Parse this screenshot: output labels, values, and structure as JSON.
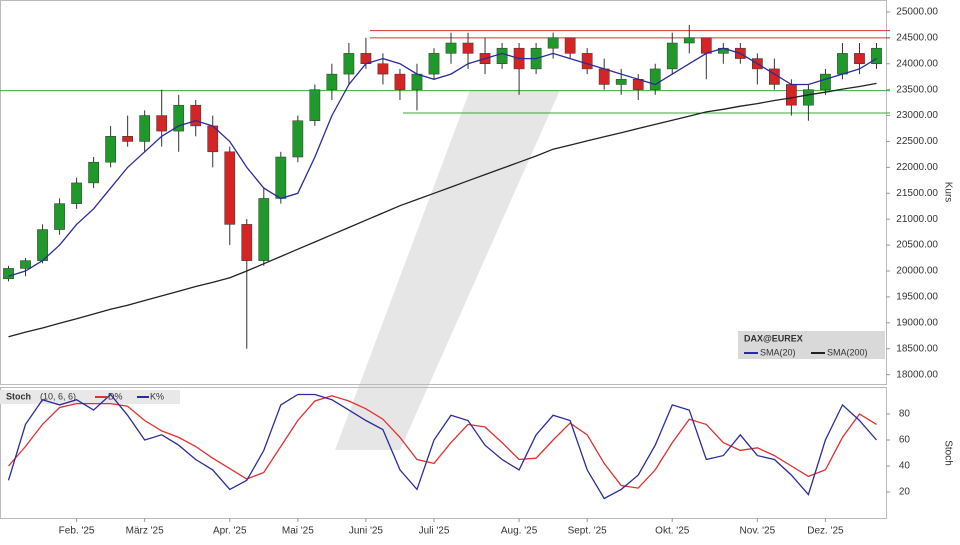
{
  "chart_data": [
    {
      "type": "candlestick",
      "legend_title": "DAX@EUREX",
      "ylabel": "Kurs",
      "categories": [
        null,
        null,
        null,
        null,
        "Feb. '25",
        null,
        null,
        null,
        "März '25",
        null,
        null,
        null,
        null,
        "Apr. '25",
        null,
        null,
        null,
        "Mai '25",
        null,
        null,
        null,
        "Juni '25",
        null,
        null,
        null,
        "Juli '25",
        null,
        null,
        null,
        null,
        "Aug. '25",
        null,
        null,
        null,
        "Sept. '25",
        null,
        null,
        null,
        null,
        "Okt. '25",
        null,
        null,
        null,
        null,
        "Nov. '25",
        null,
        null,
        null,
        "Dez. '25",
        null,
        null,
        null
      ],
      "open": [
        19850,
        20050,
        20200,
        20800,
        21300,
        21700,
        22100,
        22600,
        22500,
        23000,
        22700,
        23200,
        22800,
        22300,
        20900,
        20200,
        21400,
        22200,
        22900,
        23500,
        23800,
        24200,
        24000,
        23800,
        23500,
        23800,
        24200,
        24400,
        24200,
        24000,
        24300,
        23900,
        24300,
        24500,
        24200,
        23900,
        23600,
        23700,
        23500,
        23900,
        24400,
        24500,
        24200,
        24300,
        24100,
        23900,
        23600,
        23200,
        23500,
        23800,
        24200,
        24000
      ],
      "high": [
        20100,
        20250,
        20900,
        21400,
        21800,
        22200,
        22800,
        23000,
        23100,
        23500,
        23400,
        23300,
        23000,
        22400,
        21000,
        21600,
        22300,
        23000,
        23600,
        24000,
        24400,
        24500,
        24200,
        23900,
        24000,
        24300,
        24600,
        24600,
        24500,
        24400,
        24400,
        24400,
        24600,
        24500,
        24300,
        24100,
        23900,
        23800,
        24000,
        24600,
        24750,
        24500,
        24400,
        24400,
        24200,
        24100,
        23700,
        23600,
        23900,
        24400,
        24400,
        24400
      ],
      "low": [
        19800,
        19900,
        20150,
        20700,
        21200,
        21600,
        22000,
        22400,
        22300,
        22400,
        22300,
        22600,
        22000,
        20500,
        18500,
        20100,
        21300,
        22100,
        22800,
        23300,
        23600,
        23900,
        23600,
        23300,
        23100,
        23700,
        24000,
        23900,
        23800,
        23900,
        23400,
        23800,
        24100,
        24100,
        23800,
        23500,
        23400,
        23300,
        23400,
        23800,
        24200,
        23700,
        24000,
        24000,
        23600,
        23500,
        23000,
        22900,
        23400,
        23700,
        23800,
        23900
      ],
      "close": [
        20050,
        20200,
        20800,
        21300,
        21700,
        22100,
        22600,
        22500,
        23000,
        22700,
        23200,
        22800,
        22300,
        20900,
        20200,
        21400,
        22200,
        22900,
        23500,
        23800,
        24200,
        24000,
        23800,
        23500,
        23800,
        24200,
        24400,
        24200,
        24000,
        24300,
        23900,
        24300,
        24500,
        24200,
        23900,
        23600,
        23700,
        23500,
        23900,
        24400,
        24500,
        24200,
        24300,
        24100,
        23900,
        23600,
        23200,
        23500,
        23800,
        24200,
        24000,
        24300
      ],
      "up_color": "#1f9a2a",
      "down_color": "#d42424",
      "series": [
        {
          "name": "SMA(20)",
          "color": "#2b2b9b",
          "values": [
            19900,
            20000,
            20200,
            20500,
            20900,
            21200,
            21600,
            22000,
            22300,
            22600,
            22800,
            22900,
            22800,
            22500,
            22000,
            21600,
            21400,
            21500,
            22200,
            23000,
            23600,
            24000,
            24100,
            24000,
            23800,
            23700,
            23800,
            24000,
            24100,
            24200,
            24100,
            24100,
            24200,
            24100,
            24000,
            23900,
            23800,
            23700,
            23600,
            23800,
            24000,
            24200,
            24300,
            24200,
            24000,
            23800,
            23600,
            23600,
            23700,
            23800,
            23900,
            24100
          ]
        },
        {
          "name": "SMA(200)",
          "color": "#222222",
          "values": [
            18730,
            18820,
            18900,
            18990,
            19080,
            19170,
            19260,
            19340,
            19430,
            19520,
            19610,
            19700,
            19780,
            19870,
            20000,
            20140,
            20280,
            20420,
            20560,
            20700,
            20840,
            20980,
            21120,
            21260,
            21380,
            21500,
            21620,
            21740,
            21860,
            21980,
            22100,
            22220,
            22350,
            22430,
            22510,
            22590,
            22670,
            22750,
            22830,
            22910,
            22990,
            23070,
            23120,
            23180,
            23230,
            23290,
            23340,
            23400,
            23450,
            23510,
            23560,
            23620
          ]
        }
      ],
      "hlines": [
        {
          "value": 24640,
          "color": "#e03030"
        },
        {
          "value": 24500,
          "color": "#e03030"
        },
        {
          "value": 23480,
          "color": "#3aa83a"
        },
        {
          "value": 23050,
          "color": "#3aa83a"
        }
      ],
      "ylim": [
        17800,
        25230
      ],
      "yticks": [
        {
          "value": 25000,
          "label": "25000.00"
        },
        {
          "value": 24500,
          "label": "24500.00"
        },
        {
          "value": 24000,
          "label": "24000.00"
        },
        {
          "value": 23500,
          "label": "23500.00"
        },
        {
          "value": 23000,
          "label": "23000.00"
        },
        {
          "value": 22500,
          "label": "22500.00"
        },
        {
          "value": 22000,
          "label": "22000.00"
        },
        {
          "value": 21500,
          "label": "21500.00"
        },
        {
          "value": 21000,
          "label": "21000.00"
        },
        {
          "value": 20500,
          "label": "20500.00"
        },
        {
          "value": 20000,
          "label": "20000.00"
        },
        {
          "value": 19500,
          "label": "19500.00"
        },
        {
          "value": 19000,
          "label": "19000.00"
        },
        {
          "value": 18500,
          "label": "18500.00"
        },
        {
          "value": 18000,
          "label": "18000.00"
        }
      ]
    },
    {
      "type": "line",
      "title": "Stoch",
      "subtitle": "(10, 6, 6)",
      "ylabel": "Stoch",
      "series": [
        {
          "name": "D%",
          "color": "#e03030",
          "values": [
            40,
            55,
            72,
            85,
            88,
            88,
            88,
            86,
            75,
            67,
            62,
            55,
            46,
            38,
            30,
            35,
            55,
            75,
            90,
            94,
            90,
            84,
            76,
            62,
            45,
            42,
            58,
            72,
            70,
            58,
            45,
            46,
            60,
            73,
            64,
            42,
            25,
            23,
            37,
            58,
            76,
            72,
            58,
            52,
            54,
            48,
            40,
            32,
            37,
            62,
            80,
            72
          ]
        },
        {
          "name": "K%",
          "color": "#2b2b9b",
          "values": [
            29,
            72,
            91,
            87,
            91,
            83,
            95,
            79,
            60,
            64,
            56,
            45,
            37,
            22,
            29,
            52,
            87,
            95,
            95,
            91,
            83,
            75,
            68,
            37,
            22,
            60,
            79,
            75,
            56,
            45,
            37,
            64,
            79,
            75,
            37,
            15,
            22,
            33,
            56,
            87,
            83,
            45,
            48,
            64,
            48,
            45,
            33,
            18,
            60,
            87,
            75,
            60
          ]
        }
      ],
      "ylim": [
        0,
        100
      ],
      "yticks": [
        20,
        40,
        60,
        80
      ]
    }
  ]
}
